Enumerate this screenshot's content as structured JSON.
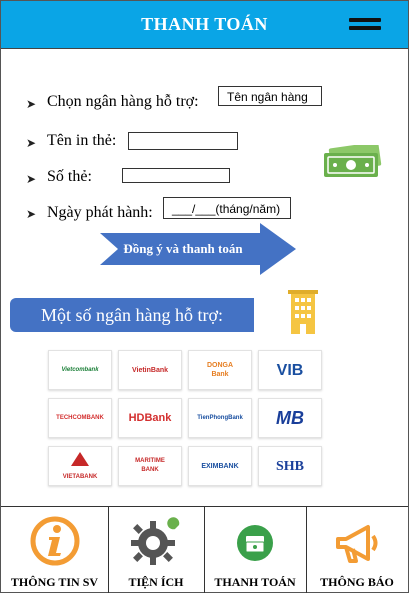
{
  "header": {
    "title": "THANH TOÁN",
    "menu_icon": "hamburger-menu-icon"
  },
  "form": {
    "bank_label": "Chọn ngân hàng hỗ trợ:",
    "bank_value": "Tên ngân hàng",
    "card_name_label": "Tên in thẻ:",
    "card_name_value": "",
    "card_number_label": "Số thẻ:",
    "card_number_value": "",
    "issue_date_label": "Ngày phát hành:",
    "issue_date_value": "___/___(tháng/năm)",
    "submit_label": "Đồng ý và thanh toán"
  },
  "colors": {
    "header": "#0aa5e6",
    "banner": "#4472c4",
    "accent_orange": "#f39c34",
    "money_green": "#6ab04c"
  },
  "supported_banks": {
    "title": "Một số ngân hàng hỗ trợ:",
    "banks": [
      {
        "name": "Vietcombank",
        "color": "#1a7f37"
      },
      {
        "name": "VietinBank",
        "color": "#c62828"
      },
      {
        "name": "DONGA Bank",
        "color": "#e67e22"
      },
      {
        "name": "VIB",
        "color": "#1a4fa0"
      },
      {
        "name": "TECHCOMBANK",
        "color": "#d32f2f"
      },
      {
        "name": "HDBank",
        "color": "#d32f2f"
      },
      {
        "name": "TienPhongBank",
        "color": "#1a4fa0"
      },
      {
        "name": "MB",
        "color": "#1a3f9a"
      },
      {
        "name": "VIETABANK",
        "color": "#c62828"
      },
      {
        "name": "MARITIME BANK",
        "color": "#c62828"
      },
      {
        "name": "EXIMBANK",
        "color": "#1a4fa0"
      },
      {
        "name": "SHB",
        "color": "#1a3f9a"
      }
    ]
  },
  "bottom_nav": [
    {
      "label": "THÔNG TIN SV",
      "icon": "info-icon"
    },
    {
      "label": "TIỆN ÍCH",
      "icon": "gear-wrench-icon"
    },
    {
      "label": "THANH TOÁN",
      "icon": "payment-icon"
    },
    {
      "label": "THÔNG BÁO",
      "icon": "megaphone-icon"
    }
  ]
}
